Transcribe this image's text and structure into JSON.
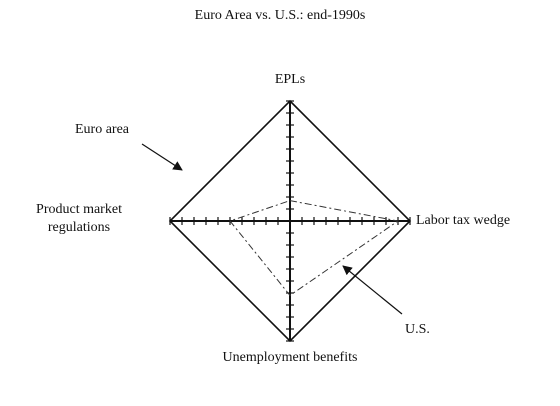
{
  "chart_data": {
    "type": "radar",
    "title": "Euro Area vs. U.S.: end-1990s",
    "categories": [
      "EPLs",
      "Labor tax wedge",
      "Unemployment benefits",
      "Product market regulations"
    ],
    "series": [
      {
        "name": "Euro area",
        "color": "#111111",
        "values": [
          10,
          10,
          10,
          10
        ]
      },
      {
        "name": "U.S.",
        "color": "#333333",
        "values": [
          1.7,
          9,
          6.2,
          5
        ]
      }
    ],
    "rlim": [
      0,
      10
    ],
    "rticks": [
      1,
      2,
      3,
      4,
      5,
      6,
      7,
      8,
      9,
      10
    ]
  }
}
